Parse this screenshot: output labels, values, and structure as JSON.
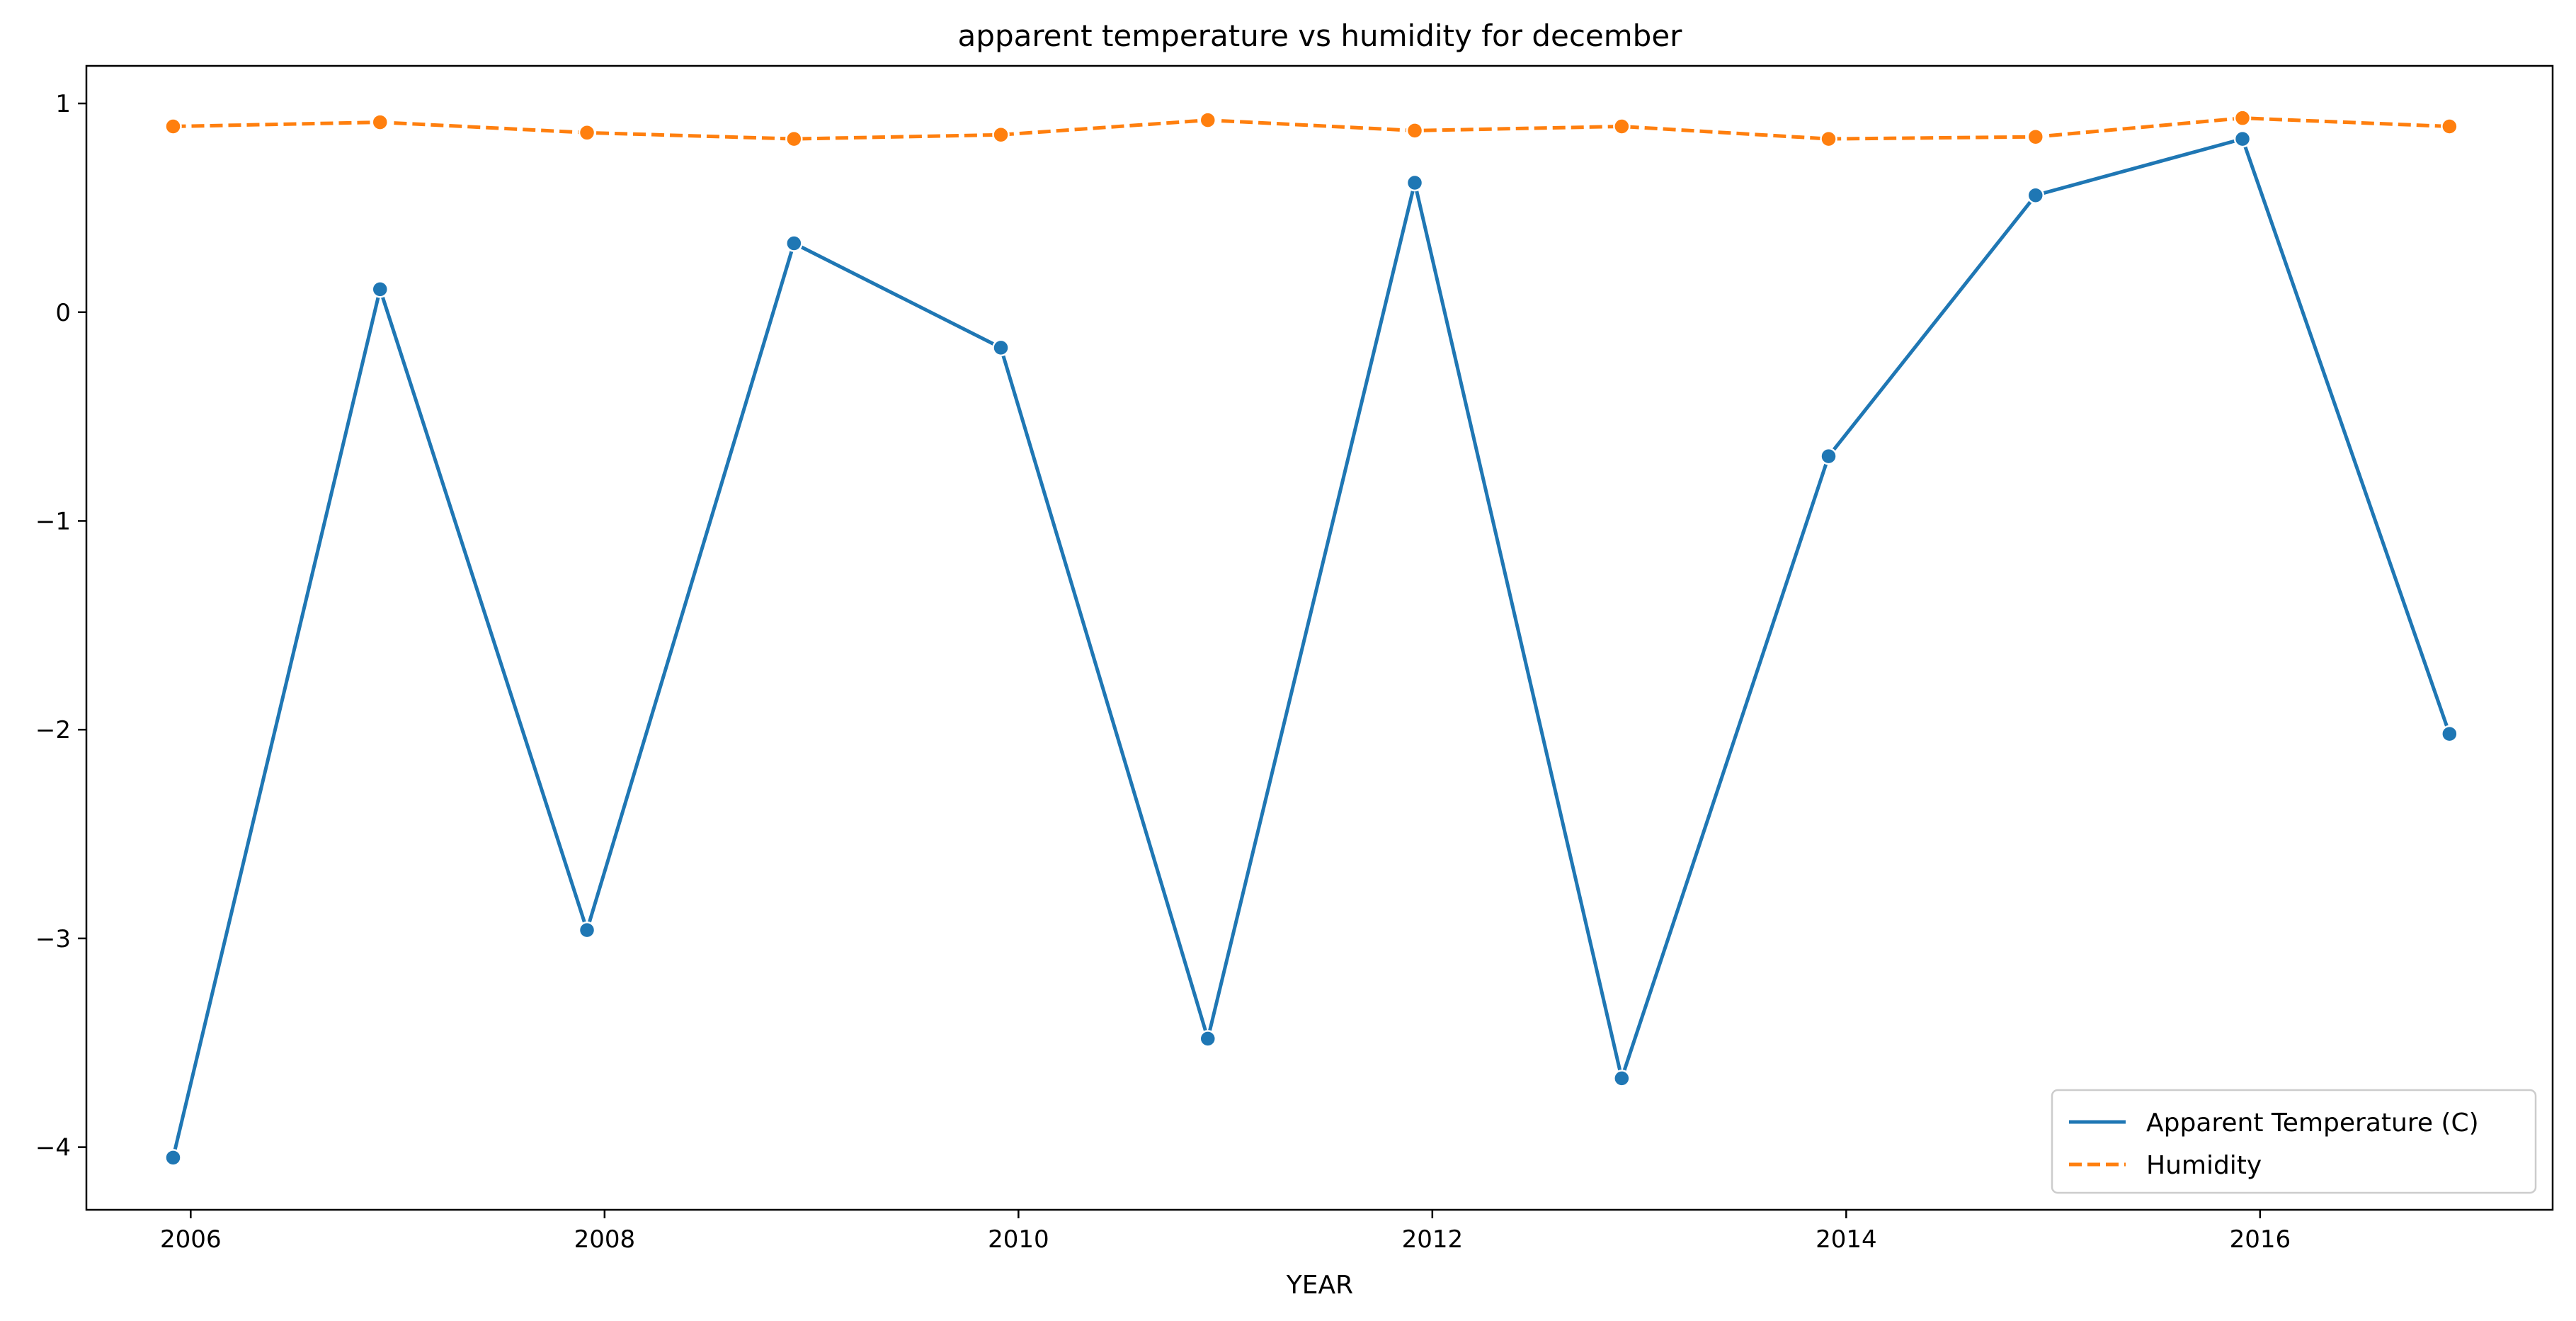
{
  "chart_data": {
    "type": "line",
    "title": "apparent temperature vs humidity for december",
    "xlabel": "YEAR",
    "ylabel": "",
    "x": [
      "2005-12-01",
      "2006-12-01",
      "2007-12-01",
      "2008-12-01",
      "2009-12-01",
      "2010-12-01",
      "2011-12-01",
      "2012-12-01",
      "2013-12-01",
      "2014-12-01",
      "2015-12-01",
      "2016-12-01"
    ],
    "series": [
      {
        "name": "Apparent Temperature (C)",
        "color": "#1f77b4",
        "dash": "solid",
        "values": [
          -4.05,
          0.11,
          -2.96,
          0.33,
          -0.17,
          -3.48,
          0.62,
          -3.67,
          -0.69,
          0.56,
          0.83,
          -2.02
        ]
      },
      {
        "name": "Humidity",
        "color": "#ff7f0e",
        "dash": "dashed",
        "values": [
          0.89,
          0.91,
          0.86,
          0.83,
          0.85,
          0.92,
          0.87,
          0.89,
          0.83,
          0.84,
          0.93,
          0.89
        ]
      }
    ],
    "xlim": [
      "2005-07-01",
      "2017-06-01"
    ],
    "ylim": [
      -4.3,
      1.18
    ],
    "x_ticks": [
      "2006",
      "2008",
      "2010",
      "2012",
      "2014",
      "2016"
    ],
    "y_ticks": [
      "1",
      "0",
      "−1",
      "−2",
      "−3",
      "−4"
    ],
    "grid": false,
    "legend_position": "lower-right"
  }
}
